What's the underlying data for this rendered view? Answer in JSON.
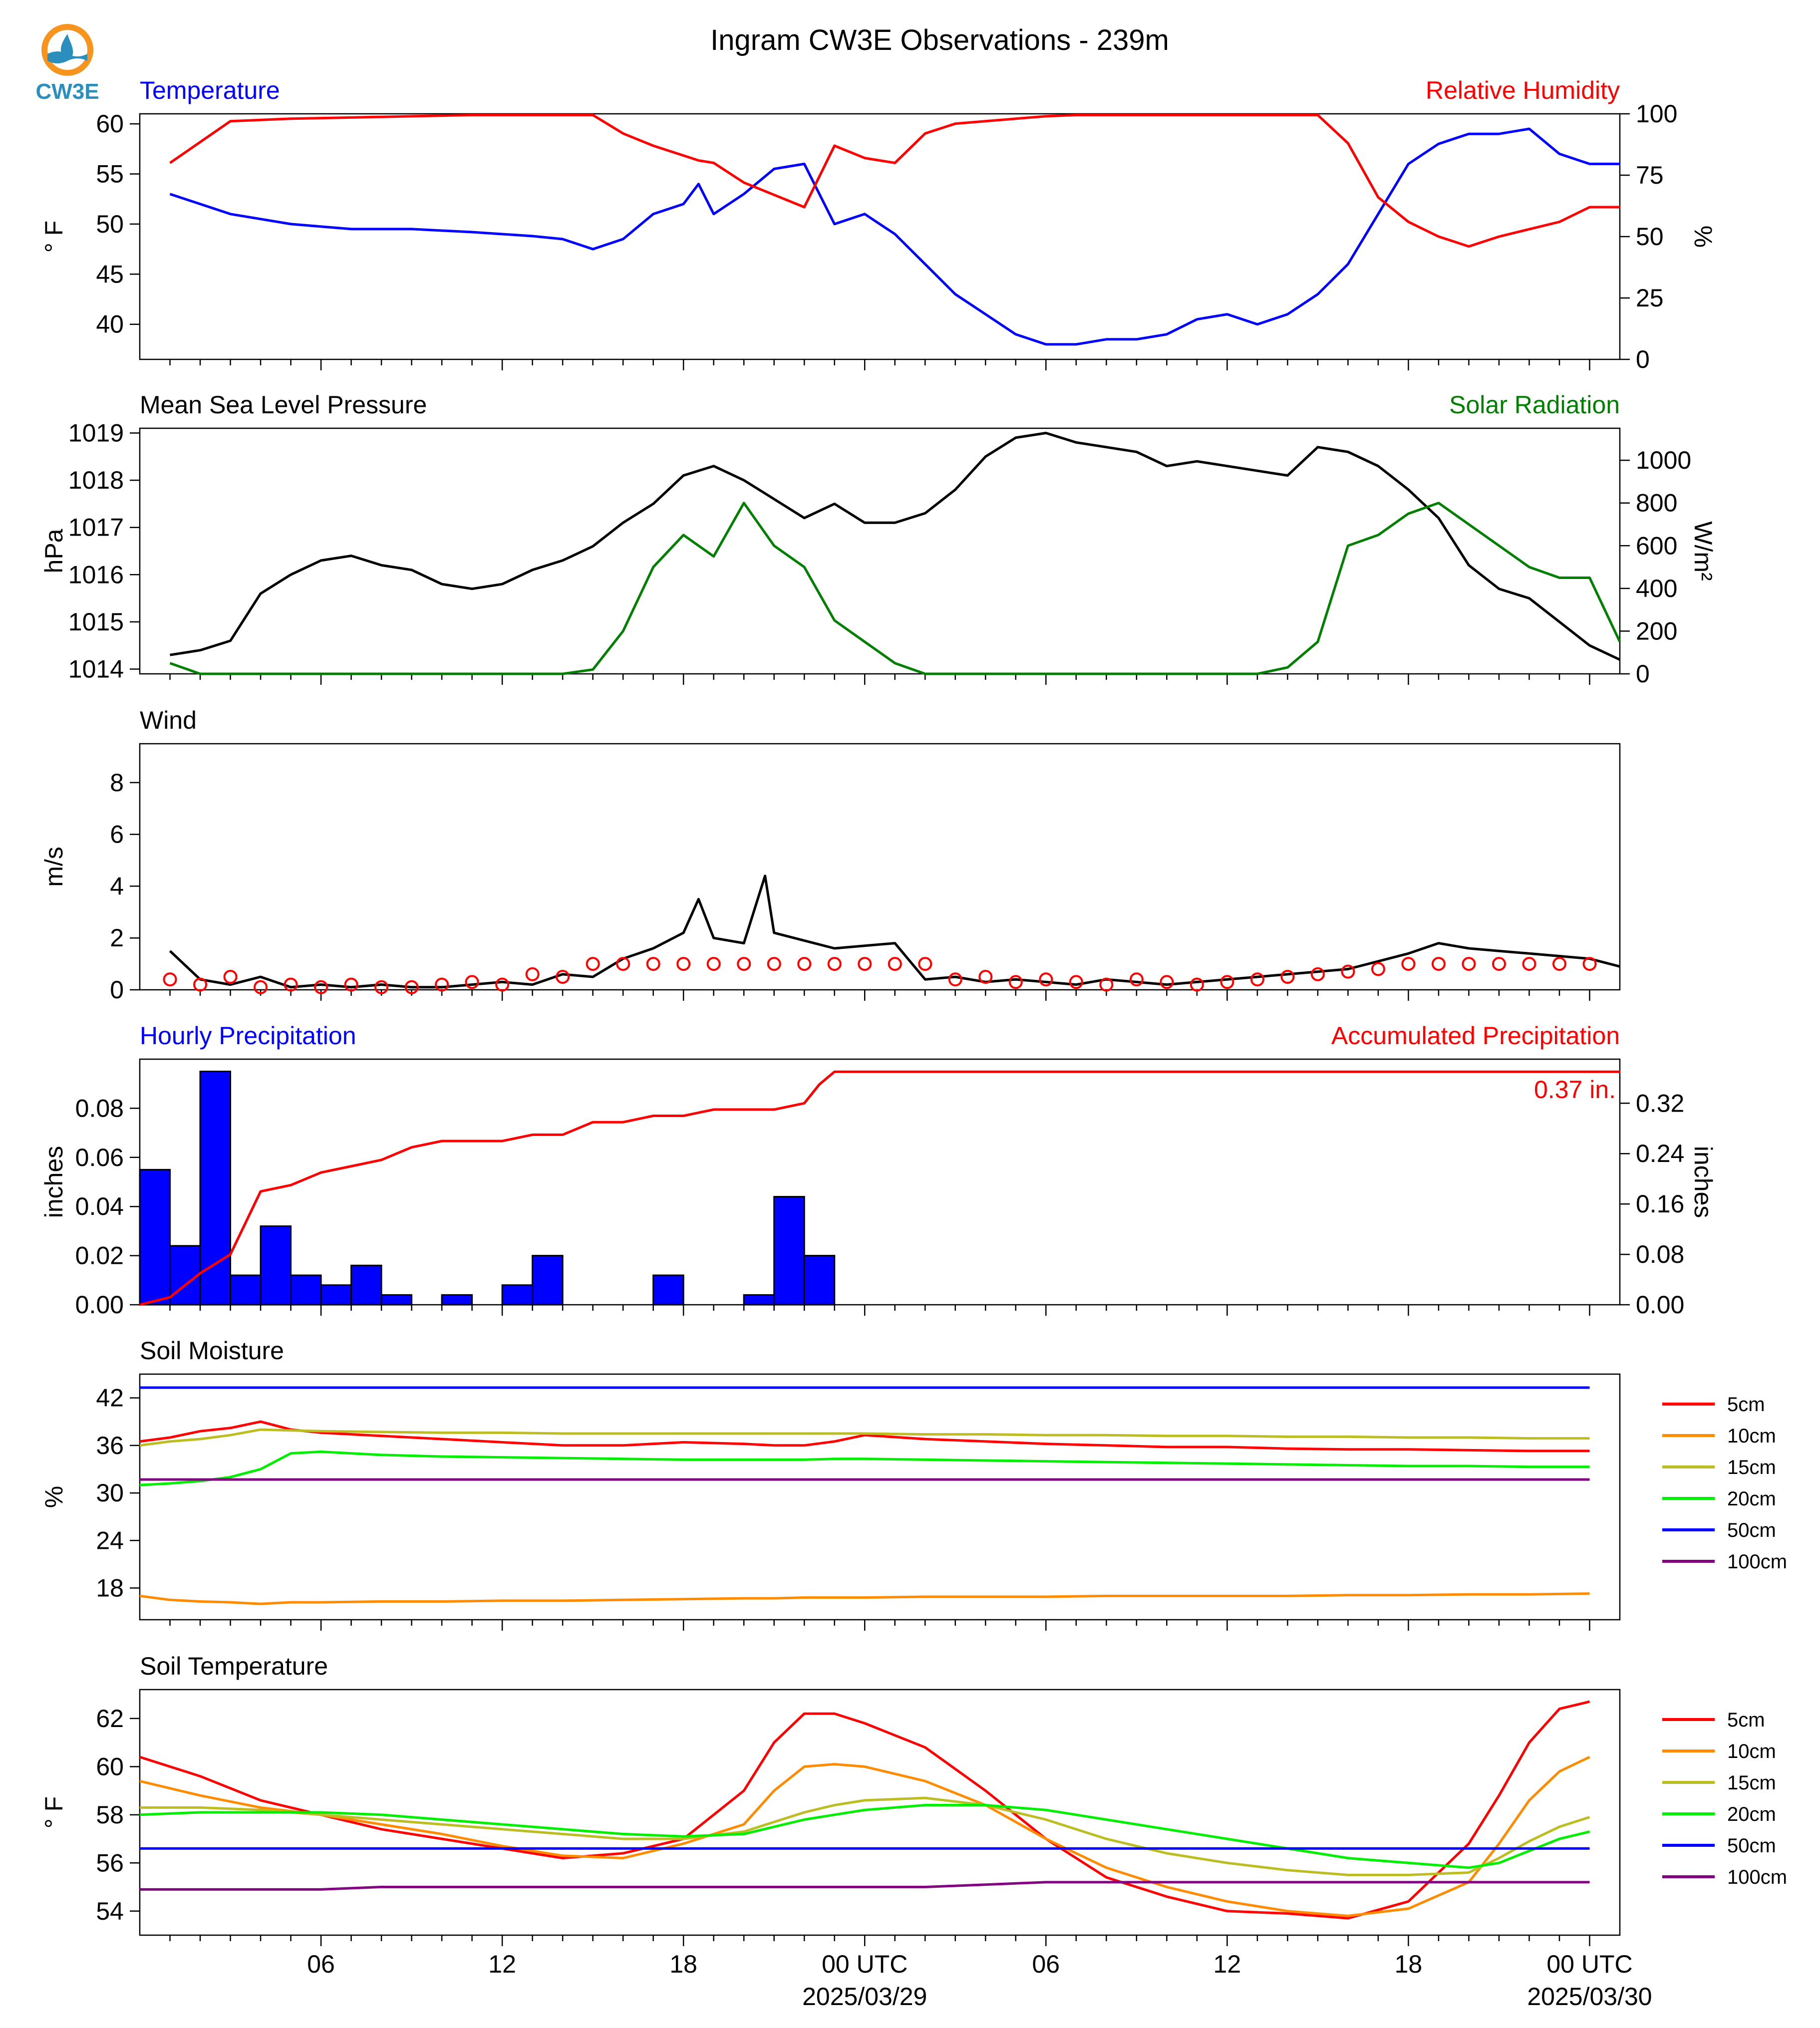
{
  "figure": {
    "title": "Ingram CW3E Observations - 239m",
    "logo_text": "CW3E",
    "x_ticks": [
      "06",
      "12",
      "18",
      "00 UTC",
      "06",
      "12",
      "18",
      "00 UTC"
    ],
    "x_dates": [
      "2025/03/29",
      "2025/03/30"
    ]
  },
  "colors": {
    "red": "#ff0000",
    "blue": "#0000ff",
    "green": "#007f00",
    "black": "#000000",
    "orange": "#ff8c00",
    "olive": "#bcbd22",
    "lime": "#00ee00",
    "purple": "#800080",
    "logo_orange": "#f7941d",
    "logo_teal": "#2a8fbd"
  },
  "chart_data": [
    {
      "type": "line",
      "title": "Temperature / Relative Humidity",
      "left_label": "Temperature",
      "right_label": "Relative Humidity",
      "ylabel": "° F",
      "y2label": "%",
      "ylim": [
        36.5,
        61
      ],
      "y2lim": [
        0,
        100
      ],
      "yticks": [
        40,
        45,
        50,
        55,
        60
      ],
      "y2ticks": [
        0,
        25,
        50,
        75,
        100
      ],
      "x_hours": [
        1,
        3,
        5,
        7,
        9,
        11,
        13,
        14,
        15,
        16,
        17,
        18,
        18.5,
        19,
        20,
        21,
        22,
        23,
        24,
        25,
        26,
        27,
        28,
        29,
        30,
        31,
        32,
        33,
        34,
        35,
        36,
        37,
        38,
        39,
        40,
        41,
        42,
        43,
        44,
        45,
        46,
        47,
        48,
        49
      ],
      "series": [
        {
          "name": "Temperature",
          "color": "blue",
          "values": [
            53,
            51,
            50,
            49.5,
            49.5,
            49.2,
            48.8,
            48.5,
            47.5,
            48.5,
            51,
            52,
            54,
            51,
            53,
            55.5,
            56,
            50,
            51,
            49,
            46,
            43,
            41,
            39,
            38,
            38,
            38.5,
            38.5,
            39,
            40.5,
            41,
            40,
            41,
            43,
            46,
            51,
            56,
            58,
            59,
            59,
            59.5,
            57,
            56,
            56
          ]
        },
        {
          "name": "Relative Humidity",
          "color": "red",
          "axis": 2,
          "values": [
            80,
            97,
            98,
            98.5,
            99,
            99.5,
            99.5,
            99.5,
            99.5,
            92,
            87,
            83,
            81,
            80,
            72,
            67,
            62,
            87,
            82,
            80,
            92,
            96,
            97,
            98,
            99,
            99.5,
            99.5,
            99.5,
            99.5,
            99.5,
            99.5,
            99.5,
            99.5,
            99.5,
            88,
            66,
            56,
            50,
            46,
            50,
            53,
            56,
            62,
            62
          ]
        }
      ]
    },
    {
      "type": "line",
      "title": "Mean Sea Level Pressure / Solar Radiation",
      "left_label": "Mean Sea Level Pressure",
      "right_label": "Solar Radiation",
      "ylabel": "hPa",
      "y2label": "W/m²",
      "ylim": [
        1013.9,
        1019.1
      ],
      "y2lim": [
        0,
        1150
      ],
      "yticks": [
        1014,
        1015,
        1016,
        1017,
        1018,
        1019
      ],
      "y2ticks": [
        0,
        200,
        400,
        600,
        800,
        1000
      ],
      "x_hours": [
        1,
        2,
        3,
        4,
        5,
        6,
        7,
        8,
        9,
        10,
        11,
        12,
        13,
        14,
        15,
        16,
        17,
        18,
        19,
        20,
        21,
        22,
        23,
        24,
        25,
        26,
        27,
        28,
        29,
        30,
        31,
        32,
        33,
        34,
        35,
        36,
        37,
        38,
        39,
        40,
        41,
        42,
        43,
        44,
        45,
        46,
        47,
        48,
        49
      ],
      "series": [
        {
          "name": "Mean Sea Level Pressure",
          "color": "black",
          "values": [
            1014.3,
            1014.4,
            1014.6,
            1015.6,
            1016.0,
            1016.3,
            1016.4,
            1016.2,
            1016.1,
            1015.8,
            1015.7,
            1015.8,
            1016.1,
            1016.3,
            1016.6,
            1017.1,
            1017.5,
            1018.1,
            1018.3,
            1018.0,
            1017.6,
            1017.2,
            1017.5,
            1017.1,
            1017.1,
            1017.3,
            1017.8,
            1018.5,
            1018.9,
            1019.0,
            1018.8,
            1018.7,
            1018.6,
            1018.3,
            1018.4,
            1018.3,
            1018.2,
            1018.1,
            1018.7,
            1018.6,
            1018.3,
            1017.8,
            1017.2,
            1016.2,
            1015.7,
            1015.5,
            1015.0,
            1014.5,
            1014.2
          ]
        },
        {
          "name": "Solar Radiation",
          "color": "green",
          "axis": 2,
          "values": [
            50,
            0,
            0,
            0,
            0,
            0,
            0,
            0,
            0,
            0,
            0,
            0,
            0,
            0,
            20,
            200,
            500,
            650,
            550,
            800,
            600,
            500,
            250,
            150,
            50,
            0,
            0,
            0,
            0,
            0,
            0,
            0,
            0,
            0,
            0,
            0,
            0,
            30,
            150,
            600,
            650,
            750,
            800,
            700,
            600,
            500,
            450,
            450,
            150
          ]
        }
      ]
    },
    {
      "type": "line",
      "title": "Wind",
      "ylabel": "m/s",
      "ylim": [
        0,
        9.5
      ],
      "yticks": [
        0,
        2,
        4,
        6,
        8
      ],
      "x_hours": [
        1,
        2,
        3,
        4,
        5,
        6,
        7,
        8,
        9,
        10,
        11,
        12,
        13,
        14,
        15,
        16,
        17,
        18,
        18.5,
        19,
        20,
        20.7,
        21,
        22,
        23,
        24,
        25,
        26,
        27,
        28,
        29,
        30,
        31,
        32,
        33,
        34,
        35,
        36,
        37,
        38,
        39,
        40,
        41,
        42,
        43,
        44,
        45,
        46,
        47,
        48,
        49
      ],
      "series": [
        {
          "name": "Wind",
          "color": "black",
          "values": [
            1.5,
            0.4,
            0.2,
            0.5,
            0.1,
            0.2,
            0.1,
            0.2,
            0.1,
            0.1,
            0.2,
            0.3,
            0.2,
            0.6,
            0.5,
            1.2,
            1.6,
            2.2,
            3.5,
            2.0,
            1.8,
            4.4,
            2.2,
            1.9,
            1.6,
            1.7,
            1.8,
            0.4,
            0.5,
            0.3,
            0.4,
            0.3,
            0.2,
            0.4,
            0.3,
            0.2,
            0.3,
            0.4,
            0.5,
            0.6,
            0.7,
            0.8,
            1.1,
            1.4,
            1.8,
            1.6,
            1.5,
            1.4,
            1.3,
            1.2,
            0.9
          ]
        }
      ]
    },
    {
      "type": "bar",
      "title": "Hourly Precipitation / Accumulated Precipitation",
      "left_label": "Hourly Precipitation",
      "right_label": "Accumulated Precipitation",
      "ylabel": "inches",
      "y2label": "inches",
      "ylim": [
        0,
        0.1
      ],
      "y2lim": [
        0,
        0.39
      ],
      "yticks": [
        0.0,
        0.02,
        0.04,
        0.06,
        0.08
      ],
      "y2ticks": [
        0.0,
        0.08,
        0.16,
        0.24,
        0.32
      ],
      "annotation": "0.37 in.",
      "x_hours": [
        1,
        2,
        3,
        4,
        5,
        6,
        7,
        8,
        9,
        10,
        11,
        12,
        13,
        14,
        15,
        16,
        17,
        18,
        19,
        20,
        21,
        22,
        23
      ],
      "values": [
        0.055,
        0.024,
        0.095,
        0.012,
        0.032,
        0.012,
        0.008,
        0.016,
        0.004,
        0,
        0.004,
        0,
        0.008,
        0.02,
        0,
        0,
        0,
        0.012,
        0,
        0,
        0.004,
        0.044,
        0.02
      ],
      "accum_x_hours": [
        0,
        1,
        2,
        3,
        3.5,
        4,
        5,
        6,
        7,
        8,
        9,
        10,
        11,
        12,
        13,
        14,
        15,
        16,
        17,
        18,
        19,
        20,
        21,
        22,
        22.5,
        23,
        49
      ],
      "accumulated": [
        0,
        0.012,
        0.05,
        0.08,
        0.13,
        0.18,
        0.19,
        0.21,
        0.22,
        0.23,
        0.25,
        0.26,
        0.26,
        0.26,
        0.27,
        0.27,
        0.29,
        0.29,
        0.3,
        0.3,
        0.31,
        0.31,
        0.31,
        0.32,
        0.35,
        0.37,
        0.37
      ]
    },
    {
      "type": "line",
      "title": "Soil Moisture",
      "ylabel": "%",
      "ylim": [
        14,
        45
      ],
      "yticks": [
        18,
        24,
        30,
        36,
        42
      ],
      "legend": "right",
      "x_hours": [
        0,
        1,
        2,
        3,
        4,
        5,
        6,
        8,
        10,
        12,
        14,
        16,
        18,
        20,
        21,
        22,
        23,
        24,
        26,
        28,
        30,
        32,
        34,
        36,
        38,
        40,
        42,
        44,
        46,
        48
      ],
      "series": [
        {
          "name": "5cm",
          "color": "red",
          "values": [
            36.5,
            37,
            37.8,
            38.2,
            39,
            38,
            37.6,
            37.2,
            36.8,
            36.4,
            36,
            36,
            36.4,
            36.2,
            36,
            36,
            36.5,
            37.3,
            36.8,
            36.5,
            36.2,
            36,
            35.8,
            35.8,
            35.6,
            35.5,
            35.5,
            35.4,
            35.3,
            35.3
          ]
        },
        {
          "name": "10cm",
          "color": "orange",
          "values": [
            17,
            16.5,
            16.3,
            16.2,
            16,
            16.2,
            16.2,
            16.3,
            16.3,
            16.4,
            16.4,
            16.5,
            16.6,
            16.7,
            16.7,
            16.8,
            16.8,
            16.8,
            16.9,
            16.9,
            16.9,
            17,
            17,
            17,
            17,
            17.1,
            17.1,
            17.2,
            17.2,
            17.3
          ]
        },
        {
          "name": "15cm",
          "color": "olive",
          "values": [
            36,
            36.5,
            36.8,
            37.3,
            38,
            37.9,
            37.8,
            37.7,
            37.6,
            37.6,
            37.5,
            37.5,
            37.5,
            37.5,
            37.5,
            37.5,
            37.5,
            37.5,
            37.4,
            37.4,
            37.3,
            37.3,
            37.2,
            37.2,
            37.1,
            37.1,
            37,
            37,
            36.9,
            36.9
          ]
        },
        {
          "name": "20cm",
          "color": "lime",
          "values": [
            31,
            31.2,
            31.5,
            32,
            33,
            35,
            35.2,
            34.8,
            34.6,
            34.5,
            34.4,
            34.3,
            34.2,
            34.2,
            34.2,
            34.2,
            34.3,
            34.3,
            34.2,
            34.1,
            34,
            33.9,
            33.8,
            33.7,
            33.6,
            33.5,
            33.4,
            33.4,
            33.3,
            33.3
          ]
        },
        {
          "name": "50cm",
          "color": "blue",
          "values": [
            43.3,
            43.3,
            43.3,
            43.3,
            43.3,
            43.3,
            43.3,
            43.3,
            43.3,
            43.3,
            43.3,
            43.3,
            43.3,
            43.3,
            43.3,
            43.3,
            43.3,
            43.3,
            43.3,
            43.3,
            43.3,
            43.3,
            43.3,
            43.3,
            43.3,
            43.3,
            43.3,
            43.3,
            43.3,
            43.3
          ]
        },
        {
          "name": "100cm",
          "color": "purple",
          "values": [
            31.7,
            31.7,
            31.7,
            31.7,
            31.7,
            31.7,
            31.7,
            31.7,
            31.7,
            31.7,
            31.7,
            31.7,
            31.7,
            31.7,
            31.7,
            31.7,
            31.7,
            31.7,
            31.7,
            31.7,
            31.7,
            31.7,
            31.7,
            31.7,
            31.7,
            31.7,
            31.7,
            31.7,
            31.7,
            31.7
          ]
        }
      ]
    },
    {
      "type": "line",
      "title": "Soil Temperature",
      "ylabel": "° F",
      "ylim": [
        53,
        63.2
      ],
      "yticks": [
        54,
        56,
        58,
        60,
        62
      ],
      "legend": "right",
      "x_hours": [
        0,
        2,
        4,
        6,
        8,
        10,
        12,
        14,
        16,
        18,
        20,
        21,
        22,
        23,
        24,
        26,
        28,
        30,
        32,
        34,
        36,
        38,
        40,
        42,
        44,
        45,
        46,
        47,
        48
      ],
      "series": [
        {
          "name": "5cm",
          "color": "red",
          "values": [
            60.4,
            59.6,
            58.6,
            58.0,
            57.4,
            57.0,
            56.6,
            56.2,
            56.4,
            57.0,
            59.0,
            61.0,
            62.2,
            62.2,
            61.8,
            60.8,
            59.0,
            57.0,
            55.4,
            54.6,
            54.0,
            53.9,
            53.7,
            54.4,
            56.8,
            58.8,
            61.0,
            62.4,
            62.7
          ]
        },
        {
          "name": "10cm",
          "color": "orange",
          "values": [
            59.4,
            58.8,
            58.3,
            58.0,
            57.6,
            57.2,
            56.7,
            56.3,
            56.2,
            56.8,
            57.6,
            59.0,
            60.0,
            60.1,
            60.0,
            59.4,
            58.4,
            57.0,
            55.8,
            55.0,
            54.4,
            54.0,
            53.8,
            54.1,
            55.2,
            56.8,
            58.6,
            59.8,
            60.4
          ]
        },
        {
          "name": "15cm",
          "color": "olive",
          "values": [
            58.3,
            58.3,
            58.2,
            58.0,
            57.8,
            57.6,
            57.4,
            57.2,
            57.0,
            57.0,
            57.3,
            57.7,
            58.1,
            58.4,
            58.6,
            58.7,
            58.4,
            57.8,
            57.0,
            56.4,
            56.0,
            55.7,
            55.5,
            55.5,
            55.6,
            56.2,
            56.9,
            57.5,
            57.9
          ]
        },
        {
          "name": "20cm",
          "color": "lime",
          "values": [
            58.0,
            58.1,
            58.1,
            58.1,
            58.0,
            57.8,
            57.6,
            57.4,
            57.2,
            57.1,
            57.2,
            57.5,
            57.8,
            58.0,
            58.2,
            58.4,
            58.4,
            58.2,
            57.8,
            57.4,
            57.0,
            56.6,
            56.2,
            56.0,
            55.8,
            56.0,
            56.5,
            57.0,
            57.3
          ]
        },
        {
          "name": "50cm",
          "color": "blue",
          "values": [
            56.6,
            56.6,
            56.6,
            56.6,
            56.6,
            56.6,
            56.6,
            56.6,
            56.6,
            56.6,
            56.6,
            56.6,
            56.6,
            56.6,
            56.6,
            56.6,
            56.6,
            56.6,
            56.6,
            56.6,
            56.6,
            56.6,
            56.6,
            56.6,
            56.6,
            56.6,
            56.6,
            56.6,
            56.6
          ]
        },
        {
          "name": "100cm",
          "color": "purple",
          "values": [
            54.9,
            54.9,
            54.9,
            54.9,
            55.0,
            55.0,
            55.0,
            55.0,
            55.0,
            55.0,
            55.0,
            55.0,
            55.0,
            55.0,
            55.0,
            55.0,
            55.1,
            55.2,
            55.2,
            55.2,
            55.2,
            55.2,
            55.2,
            55.2,
            55.2,
            55.2,
            55.2,
            55.2,
            55.2
          ]
        }
      ]
    }
  ]
}
